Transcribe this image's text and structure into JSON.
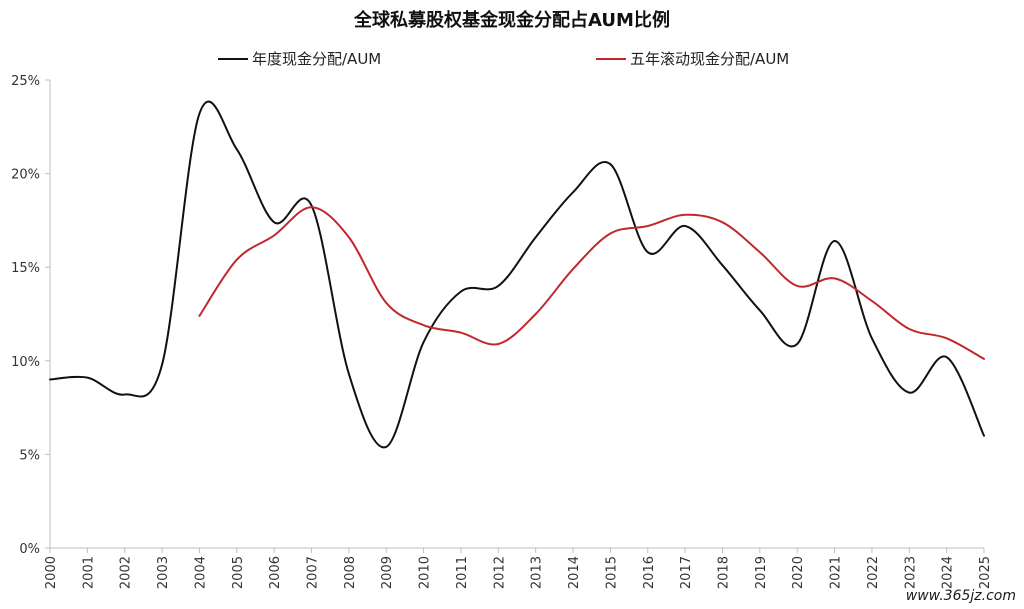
{
  "chart_data": {
    "type": "line",
    "title": "全球私募股权基金现金分配占AUM比例",
    "x": [
      "2000",
      "2001",
      "2002",
      "2003",
      "2004",
      "2005",
      "2006",
      "2007",
      "2008",
      "2009",
      "2010",
      "2011",
      "2012",
      "2013",
      "2014",
      "2015",
      "2016",
      "2017",
      "2018",
      "2019",
      "2020",
      "2021",
      "2022",
      "2023",
      "2024",
      "2025"
    ],
    "ylim": [
      0,
      25
    ],
    "yticks": [
      "0%",
      "5%",
      "10%",
      "15%",
      "20%",
      "25%"
    ],
    "legend_position": "top",
    "grid": false,
    "series": [
      {
        "name": "年度现金分配/AUM",
        "color": "#111111",
        "values": [
          9.0,
          9.1,
          8.2,
          9.8,
          23.2,
          21.3,
          17.4,
          18.3,
          9.3,
          5.4,
          11.0,
          13.7,
          14.0,
          16.6,
          19.0,
          20.5,
          15.8,
          17.2,
          15.1,
          12.7,
          10.9,
          16.4,
          11.2,
          8.3,
          10.2,
          6.0
        ]
      },
      {
        "name": "五年滚动现金分配/AUM",
        "color": "#c0282d",
        "values": [
          null,
          null,
          null,
          null,
          12.4,
          15.4,
          16.7,
          18.2,
          16.6,
          13.1,
          11.9,
          11.5,
          10.9,
          12.5,
          14.9,
          16.8,
          17.2,
          17.8,
          17.4,
          15.8,
          14.0,
          14.4,
          13.2,
          11.7,
          11.2,
          10.1
        ]
      }
    ]
  },
  "watermark": "www.365jz.com"
}
